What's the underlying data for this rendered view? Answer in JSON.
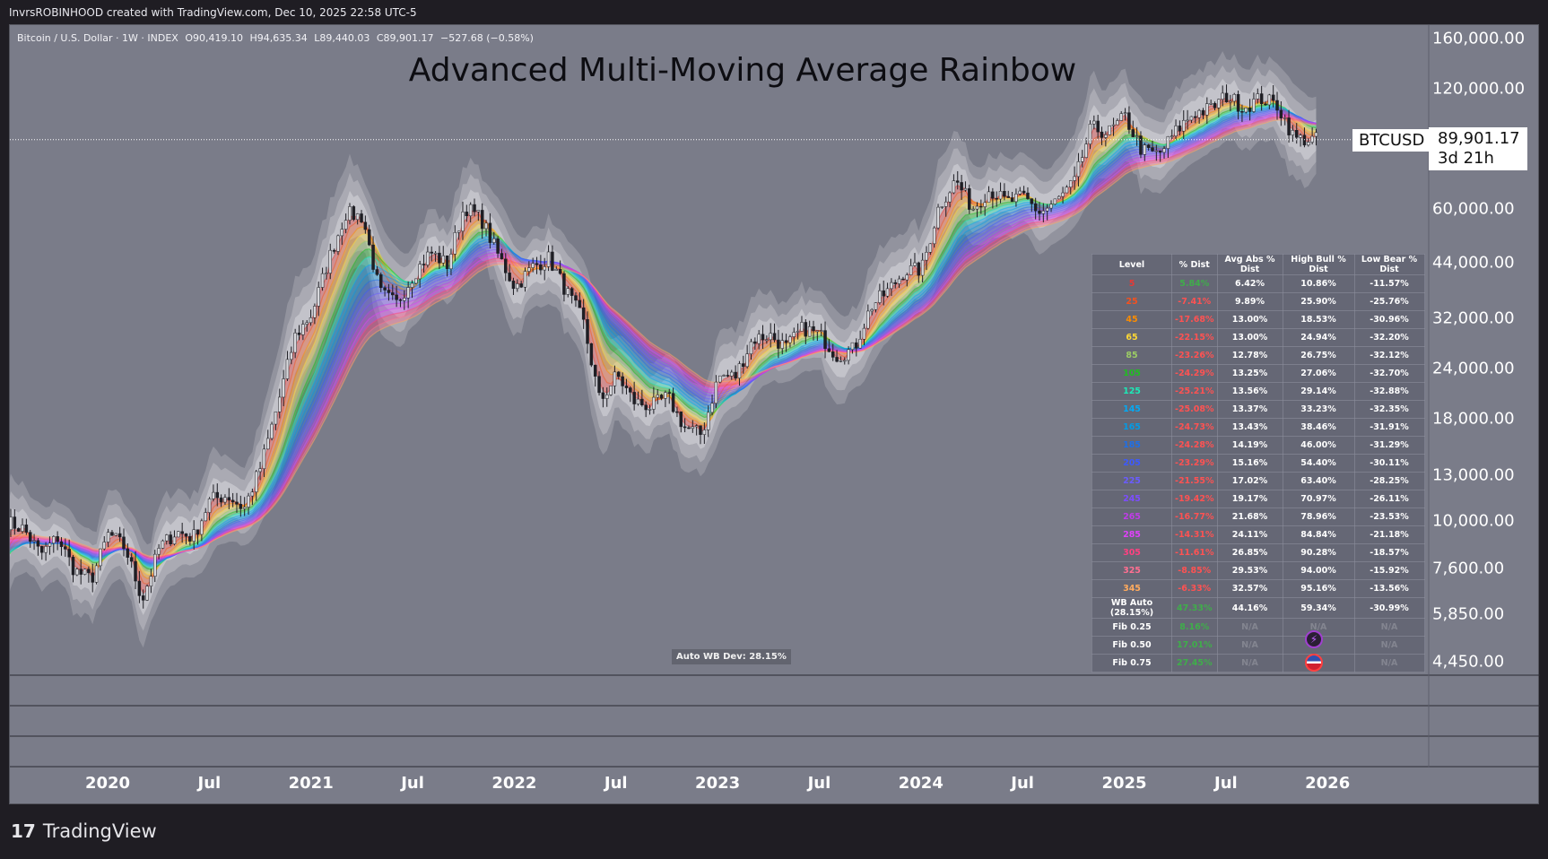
{
  "header": {
    "attribution": "InvrsROBINHOOD created with TradingView.com, Dec 10, 2025 22:58 UTC-5"
  },
  "legend": {
    "symbol": "Bitcoin / U.S. Dollar · 1W · INDEX",
    "o": "O90,419.10",
    "h": "H94,635.34",
    "l": "L89,440.03",
    "c": "C89,901.17",
    "chg": "−527.68 (−0.58%)"
  },
  "price_label": {
    "symbol": "BTCUSD",
    "price": "89,901.17",
    "countdown": "3d 21h"
  },
  "auto_wb": "Auto WB Dev: 28.15%",
  "brand": "TradingView",
  "colors": {
    "background": "#7a7c89",
    "frame": "#1f1d23",
    "up": "#d8d8dc",
    "down": "#1e1e24",
    "positive": "#3fae4a",
    "negative": "#ff5252"
  },
  "table": {
    "headers": [
      "Level",
      "% Dist",
      "Avg Abs % Dist",
      "High Bull % Dist",
      "Low Bear % Dist"
    ],
    "rows": [
      {
        "level": "5",
        "color": "#e53935",
        "dist": "5.84%",
        "avg": "6.42%",
        "high": "10.86%",
        "low": "-11.57%"
      },
      {
        "level": "25",
        "color": "#f4511e",
        "dist": "-7.41%",
        "avg": "9.89%",
        "high": "25.90%",
        "low": "-25.76%"
      },
      {
        "level": "45",
        "color": "#fb8c00",
        "dist": "-17.68%",
        "avg": "13.00%",
        "high": "18.53%",
        "low": "-30.96%"
      },
      {
        "level": "65",
        "color": "#fdd835",
        "dist": "-22.15%",
        "avg": "13.00%",
        "high": "24.94%",
        "low": "-32.20%"
      },
      {
        "level": "85",
        "color": "#9ccc65",
        "dist": "-23.26%",
        "avg": "12.78%",
        "high": "26.75%",
        "low": "-32.12%"
      },
      {
        "level": "105",
        "color": "#1fbf1f",
        "dist": "-24.29%",
        "avg": "13.25%",
        "high": "27.06%",
        "low": "-32.70%"
      },
      {
        "level": "125",
        "color": "#1de9b6",
        "dist": "-25.21%",
        "avg": "13.56%",
        "high": "29.14%",
        "low": "-32.88%"
      },
      {
        "level": "145",
        "color": "#03a9f4",
        "dist": "-25.08%",
        "avg": "13.37%",
        "high": "33.23%",
        "low": "-32.35%"
      },
      {
        "level": "165",
        "color": "#039be5",
        "dist": "-24.73%",
        "avg": "13.43%",
        "high": "38.46%",
        "low": "-31.91%"
      },
      {
        "level": "185",
        "color": "#1e6fe8",
        "dist": "-24.28%",
        "avg": "14.19%",
        "high": "46.00%",
        "low": "-31.29%"
      },
      {
        "level": "205",
        "color": "#3d5afe",
        "dist": "-23.29%",
        "avg": "15.16%",
        "high": "54.40%",
        "low": "-30.11%"
      },
      {
        "level": "225",
        "color": "#6a5cff",
        "dist": "-21.55%",
        "avg": "17.02%",
        "high": "63.40%",
        "low": "-28.25%"
      },
      {
        "level": "245",
        "color": "#7c4dff",
        "dist": "-19.42%",
        "avg": "19.17%",
        "high": "70.97%",
        "low": "-26.11%"
      },
      {
        "level": "265",
        "color": "#c03ce8",
        "dist": "-16.77%",
        "avg": "21.68%",
        "high": "78.96%",
        "low": "-23.53%"
      },
      {
        "level": "285",
        "color": "#e040fb",
        "dist": "-14.31%",
        "avg": "24.11%",
        "high": "84.84%",
        "low": "-21.18%"
      },
      {
        "level": "305",
        "color": "#ff4081",
        "dist": "-11.61%",
        "avg": "26.85%",
        "high": "90.28%",
        "low": "-18.57%"
      },
      {
        "level": "325",
        "color": "#ff6f91",
        "dist": "-8.85%",
        "avg": "29.53%",
        "high": "94.00%",
        "low": "-15.92%"
      },
      {
        "level": "345",
        "color": "#ffab5e",
        "dist": "-6.33%",
        "avg": "32.57%",
        "high": "95.16%",
        "low": "-13.56%"
      },
      {
        "level": "WB Auto (28.15%)",
        "color": "#ffffff",
        "dist": "47.33%",
        "avg": "44.16%",
        "high": "59.34%",
        "low": "-30.99%"
      },
      {
        "level": "Fib 0.25",
        "color": "#ffffff",
        "dist": "8.16%",
        "avg": "N/A",
        "high": "N/A",
        "low": "N/A"
      },
      {
        "level": "Fib 0.50",
        "color": "#ffffff",
        "dist": "17.01%",
        "avg": "N/A",
        "high": "",
        "low": "N/A"
      },
      {
        "level": "Fib 0.75",
        "color": "#ffffff",
        "dist": "27.45%",
        "avg": "N/A",
        "high": "",
        "low": "N/A"
      }
    ]
  },
  "chart_data": {
    "type": "candlestick",
    "title": "Advanced Multi-Moving Average Rainbow",
    "yscale": "log",
    "ylim": [
      4450,
      160000
    ],
    "grid": false,
    "y_ticks": [
      "160,000.00",
      "120,000.00",
      "60,000.00",
      "44,000.00",
      "32,000.00",
      "24,000.00",
      "18,000.00",
      "13,000.00",
      "10,000.00",
      "7,600.00",
      "5,850.00",
      "4,450.00"
    ],
    "y_tick_values": [
      160000,
      120000,
      60000,
      44000,
      32000,
      24000,
      18000,
      13000,
      10000,
      7600,
      5850,
      4450
    ],
    "x_ticks": [
      "2020",
      "Jul",
      "2021",
      "Jul",
      "2022",
      "Jul",
      "2023",
      "Jul",
      "2024",
      "Jul",
      "2025",
      "Jul",
      "2026"
    ],
    "x_tick_values": [
      2020.0,
      2020.5,
      2021.0,
      2021.5,
      2022.0,
      2022.5,
      2023.0,
      2023.5,
      2024.0,
      2024.5,
      2025.0,
      2025.5,
      2026.0
    ],
    "last_price": 89901.17,
    "monthly_close_start": "2019-07",
    "monthly_close": [
      10000,
      9600,
      8300,
      9150,
      7550,
      7200,
      9350,
      8600,
      6400,
      8630,
      9450,
      9140,
      11350,
      11650,
      10780,
      13800,
      19700,
      29000,
      33100,
      45200,
      58800,
      57700,
      37300,
      35000,
      41500,
      47100,
      43800,
      61300,
      57000,
      46300,
      38500,
      43200,
      45500,
      37700,
      31800,
      19900,
      23300,
      20000,
      19400,
      20500,
      17200,
      16500,
      23100,
      23100,
      28500,
      29300,
      27200,
      30500,
      29200,
      26000,
      27000,
      34500,
      37700,
      42300,
      42600,
      61200,
      71300,
      60600,
      67500,
      62700,
      64600,
      59000,
      63300,
      70200,
      96400,
      93400,
      102400,
      84300,
      82500,
      94200,
      104600,
      107100,
      115700,
      108200,
      114000,
      109500,
      90400,
      89901
    ],
    "ma_lengths": [
      5,
      25,
      45,
      65,
      85,
      105,
      125,
      145,
      165,
      185,
      205,
      225,
      245,
      265,
      285,
      305,
      325,
      345
    ]
  }
}
